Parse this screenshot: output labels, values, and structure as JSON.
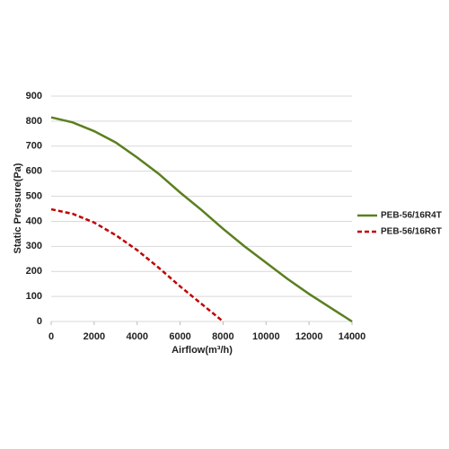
{
  "chart_data": {
    "type": "line",
    "xlabel": "Airflow(m³/h)",
    "ylabel": "Static Pressure(Pa)",
    "x": [
      0,
      1000,
      2000,
      3000,
      4000,
      5000,
      6000,
      7000,
      8000,
      9000,
      10000,
      11000,
      12000,
      13000,
      14000
    ],
    "series": [
      {
        "name": "PEB-56/16R4T",
        "color": "#5b7f1f",
        "dash": false,
        "values": [
          815,
          795,
          760,
          715,
          655,
          590,
          515,
          445,
          370,
          300,
          235,
          170,
          110,
          55,
          0
        ]
      },
      {
        "name": "PEB-56/16R6T",
        "color": "#c00000",
        "dash": true,
        "values": [
          448,
          430,
          395,
          345,
          285,
          215,
          140,
          70,
          0,
          null,
          null,
          null,
          null,
          null,
          null
        ]
      }
    ],
    "xlim": [
      0,
      14000
    ],
    "xticks": [
      0,
      2000,
      4000,
      6000,
      8000,
      10000,
      12000,
      14000
    ],
    "ylim": [
      0,
      900
    ],
    "yticks": [
      0,
      100,
      200,
      300,
      400,
      500,
      600,
      700,
      800,
      900
    ],
    "grid": true,
    "legend": "right"
  }
}
